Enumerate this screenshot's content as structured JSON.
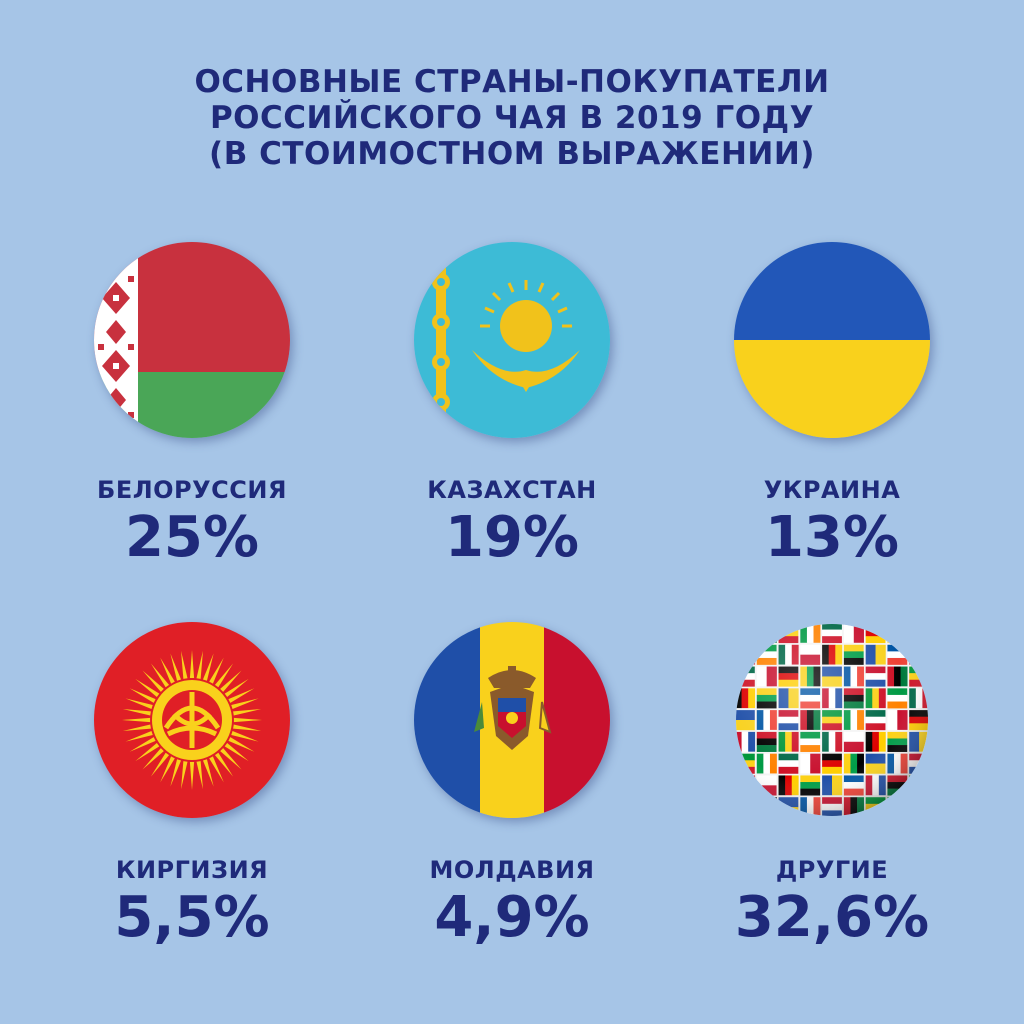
{
  "title": {
    "line1": "ОСНОВНЫЕ СТРАНЫ-ПОКУПАТЕЛИ",
    "line2": "РОССИЙСКОГО ЧАЯ В 2019 ГОДУ",
    "line3": "(В СТОИМОСТНОМ ВЫРАЖЕНИИ)"
  },
  "countries": [
    {
      "name": "БЕЛОРУССИЯ",
      "share": "25%",
      "icon": "belarus-flag-icon"
    },
    {
      "name": "КАЗАХСТАН",
      "share": "19%",
      "icon": "kazakhstan-flag-icon"
    },
    {
      "name": "УКРАИНА",
      "share": "13%",
      "icon": "ukraine-flag-icon"
    },
    {
      "name": "КИРГИЗИЯ",
      "share": "5,5%",
      "icon": "kyrgyzstan-flag-icon"
    },
    {
      "name": "МОЛДАВИЯ",
      "share": "4,9%",
      "icon": "moldova-flag-icon"
    },
    {
      "name": "ДРУГИЕ",
      "share": "32,6%",
      "icon": "world-flags-globe-icon"
    }
  ],
  "colors": {
    "background": "#a6c5e7",
    "text": "#1f2a7a"
  }
}
